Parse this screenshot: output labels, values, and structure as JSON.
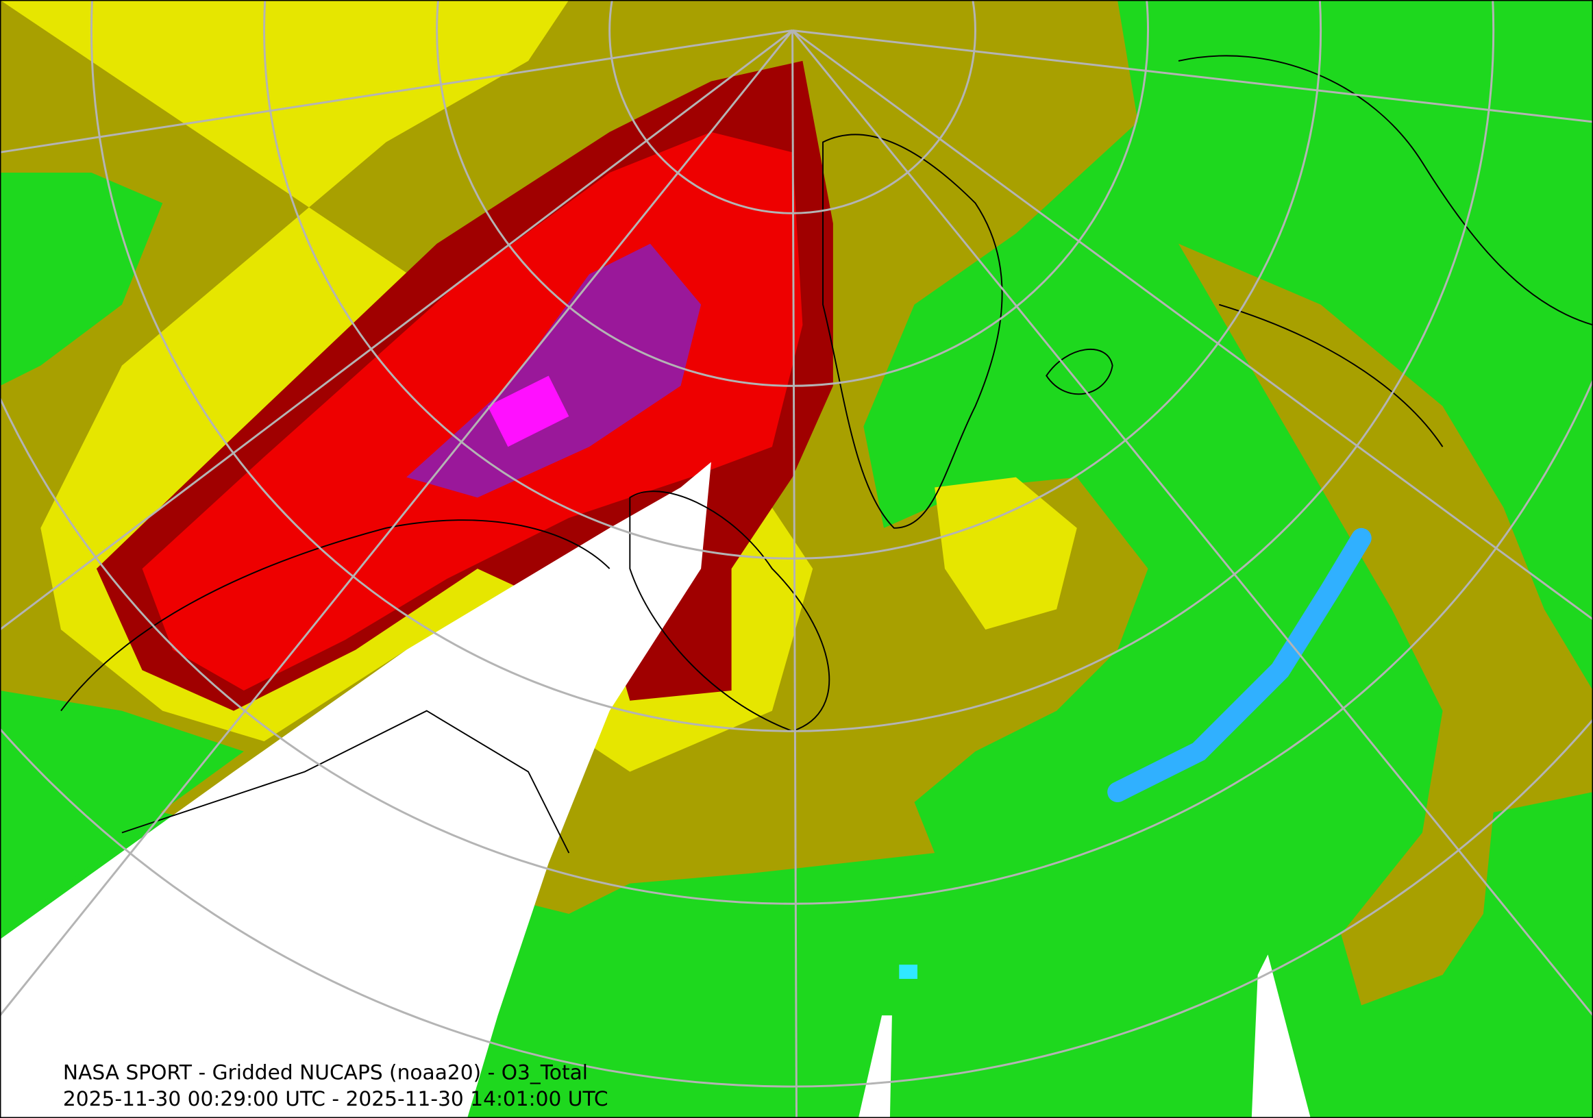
{
  "caption": {
    "line1": "NASA SPORT - Gridded NUCAPS (noaa20) - O3_Total",
    "line2": "2025-11-30 00:29:00 UTC - 2025-11-30 14:01:00 UTC"
  }
}
